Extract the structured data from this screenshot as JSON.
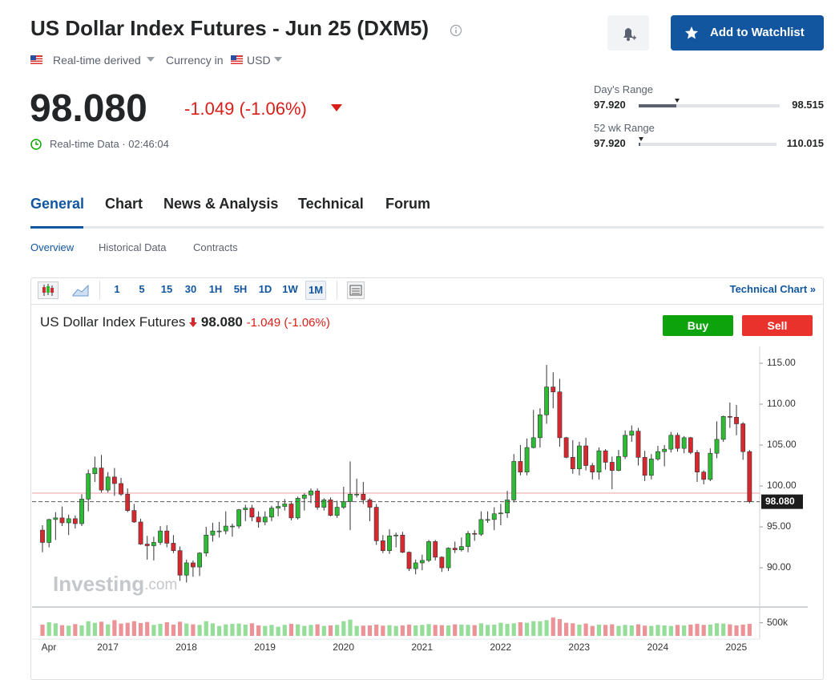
{
  "header": {
    "title": "US Dollar Index Futures - Jun 25 (DXM5)",
    "source": "Real-time derived",
    "currency_label": "Currency in",
    "currency": "USD",
    "add_watchlist": "Add to Watchlist"
  },
  "quote": {
    "price": {
      "value": 98.08,
      "label": "98.080"
    },
    "change": "-1.049",
    "change_pct": "(-1.06%)",
    "status": "Real-time Data · 02:46:04"
  },
  "ranges": [
    {
      "label": "Day's Range",
      "low": {
        "value": 97.92,
        "label": "97.920"
      },
      "high": {
        "value": 98.515,
        "label": "98.515"
      }
    },
    {
      "label": "52 wk Range",
      "low": {
        "value": 97.92,
        "label": "97.920"
      },
      "high": {
        "value": 110.015,
        "label": "110.015"
      }
    }
  ],
  "tabs": [
    "General",
    "Chart",
    "News & Analysis",
    "Technical",
    "Forum"
  ],
  "subtabs": [
    "Overview",
    "Historical Data",
    "Contracts"
  ],
  "toolbar": {
    "intervals": [
      "1",
      "5",
      "15",
      "30",
      "1H",
      "5H",
      "1D",
      "1W",
      "1M"
    ],
    "technical_chart": "Technical Chart »"
  },
  "buy": "Buy",
  "sell": "Sell",
  "chart_data": {
    "type": "candlestick",
    "title": "US Dollar Index Futures",
    "last": {
      "value": 98.08,
      "label": "98.080"
    },
    "watermark": {
      "brand": "Investing",
      "suffix": ".com"
    },
    "up_color": "#2dbb35",
    "down_color": "#d7282f",
    "reference_line": 99.13,
    "categories": [
      "Apr",
      null,
      null,
      null,
      null,
      null,
      null,
      null,
      null,
      "2017",
      null,
      null,
      null,
      null,
      null,
      null,
      null,
      null,
      null,
      null,
      null,
      "2018",
      null,
      null,
      null,
      null,
      null,
      null,
      null,
      null,
      null,
      null,
      null,
      "2019",
      null,
      null,
      null,
      null,
      null,
      null,
      null,
      null,
      null,
      null,
      null,
      "2020",
      null,
      null,
      null,
      null,
      null,
      null,
      null,
      null,
      null,
      null,
      null,
      "2021",
      null,
      null,
      null,
      null,
      null,
      null,
      null,
      null,
      null,
      null,
      null,
      "2022",
      null,
      null,
      null,
      null,
      null,
      null,
      null,
      null,
      null,
      null,
      null,
      "2023",
      null,
      null,
      null,
      null,
      null,
      null,
      null,
      null,
      null,
      null,
      null,
      "2024",
      null,
      null,
      null,
      null,
      null,
      null,
      null,
      null,
      null,
      null,
      null,
      "2025",
      null,
      null,
      null
    ],
    "candles": [
      [
        94.6,
        95.2,
        91.9,
        93.1
      ],
      [
        93.1,
        96.0,
        92.5,
        95.9
      ],
      [
        95.9,
        96.8,
        93.4,
        96.1
      ],
      [
        96.1,
        97.5,
        95.1,
        95.5
      ],
      [
        95.5,
        96.5,
        94.0,
        96.0
      ],
      [
        96.0,
        96.4,
        94.8,
        95.4
      ],
      [
        95.4,
        99.0,
        95.1,
        98.4
      ],
      [
        98.4,
        102.0,
        96.9,
        101.5
      ],
      [
        101.5,
        103.6,
        100.5,
        102.2
      ],
      [
        102.2,
        103.8,
        99.2,
        99.5
      ],
      [
        99.5,
        101.7,
        99.2,
        101.1
      ],
      [
        101.1,
        102.2,
        98.8,
        100.3
      ],
      [
        100.3,
        101.0,
        98.8,
        99.0
      ],
      [
        99.0,
        99.7,
        96.8,
        97.0
      ],
      [
        97.0,
        97.8,
        95.5,
        95.6
      ],
      [
        95.6,
        96.0,
        92.8,
        92.9
      ],
      [
        92.9,
        93.9,
        91.0,
        92.7
      ],
      [
        92.7,
        93.8,
        90.9,
        93.1
      ],
      [
        93.1,
        95.1,
        92.8,
        94.5
      ],
      [
        94.5,
        95.2,
        92.5,
        93.0
      ],
      [
        93.0,
        94.0,
        91.8,
        92.1
      ],
      [
        92.1,
        92.6,
        88.4,
        89.1
      ],
      [
        89.1,
        91.0,
        88.2,
        90.6
      ],
      [
        90.6,
        90.9,
        88.9,
        90.1
      ],
      [
        90.1,
        91.9,
        89.0,
        91.8
      ],
      [
        91.8,
        95.0,
        91.4,
        94.0
      ],
      [
        94.0,
        95.5,
        93.2,
        94.5
      ],
      [
        94.5,
        95.6,
        93.7,
        94.5
      ],
      [
        94.5,
        96.9,
        94.1,
        95.1
      ],
      [
        95.1,
        95.4,
        93.8,
        95.1
      ],
      [
        95.1,
        97.2,
        94.8,
        97.1
      ],
      [
        97.1,
        97.7,
        95.7,
        97.3
      ],
      [
        97.3,
        97.7,
        95.7,
        96.2
      ],
      [
        96.2,
        96.9,
        94.9,
        95.6
      ],
      [
        95.6,
        96.9,
        95.2,
        96.2
      ],
      [
        96.2,
        97.6,
        95.7,
        97.3
      ],
      [
        97.3,
        98.1,
        96.3,
        97.5
      ],
      [
        97.5,
        98.4,
        97.0,
        97.8
      ],
      [
        97.8,
        98.0,
        95.8,
        96.1
      ],
      [
        96.1,
        98.7,
        95.9,
        98.5
      ],
      [
        98.5,
        99.1,
        97.0,
        98.9
      ],
      [
        98.9,
        99.7,
        97.9,
        99.4
      ],
      [
        99.4,
        99.7,
        97.1,
        97.4
      ],
      [
        97.4,
        98.5,
        97.0,
        98.3
      ],
      [
        98.3,
        98.6,
        96.3,
        96.4
      ],
      [
        96.4,
        98.2,
        96.1,
        97.4
      ],
      [
        97.4,
        99.9,
        97.2,
        98.1
      ],
      [
        98.1,
        103.0,
        94.6,
        99.0
      ],
      [
        99.0,
        100.9,
        98.6,
        99.0
      ],
      [
        99.0,
        100.5,
        97.8,
        98.3
      ],
      [
        98.3,
        98.5,
        95.7,
        97.4
      ],
      [
        97.4,
        97.8,
        92.8,
        93.3
      ],
      [
        93.3,
        94.0,
        91.8,
        92.1
      ],
      [
        92.1,
        94.7,
        91.7,
        93.9
      ],
      [
        93.9,
        94.3,
        92.5,
        94.0
      ],
      [
        94.0,
        94.4,
        91.8,
        91.9
      ],
      [
        91.9,
        92.0,
        89.6,
        89.9
      ],
      [
        89.9,
        91.0,
        89.2,
        90.6
      ],
      [
        90.6,
        91.6,
        89.7,
        90.9
      ],
      [
        90.9,
        93.4,
        90.7,
        93.2
      ],
      [
        93.2,
        93.4,
        90.9,
        91.3
      ],
      [
        91.3,
        91.4,
        89.5,
        90.0
      ],
      [
        90.0,
        92.5,
        89.6,
        92.4
      ],
      [
        92.4,
        93.2,
        91.8,
        92.2
      ],
      [
        92.2,
        93.7,
        92.0,
        92.6
      ],
      [
        92.6,
        94.5,
        91.9,
        94.2
      ],
      [
        94.2,
        94.6,
        93.3,
        94.1
      ],
      [
        94.1,
        96.9,
        93.9,
        95.9
      ],
      [
        95.9,
        96.9,
        95.5,
        95.9
      ],
      [
        95.9,
        97.4,
        94.6,
        96.6
      ],
      [
        96.6,
        97.8,
        95.2,
        96.7
      ],
      [
        96.7,
        99.4,
        96.1,
        98.3
      ],
      [
        98.3,
        103.9,
        98.0,
        103.0
      ],
      [
        103.0,
        105.0,
        101.3,
        101.7
      ],
      [
        101.7,
        105.8,
        101.3,
        104.7
      ],
      [
        104.7,
        109.3,
        104.6,
        105.9
      ],
      [
        105.9,
        109.5,
        104.7,
        108.7
      ],
      [
        108.7,
        114.8,
        107.6,
        112.1
      ],
      [
        112.1,
        113.9,
        109.5,
        111.5
      ],
      [
        111.5,
        113.1,
        104.8,
        105.9
      ],
      [
        105.9,
        106.0,
        103.4,
        103.5
      ],
      [
        103.5,
        105.6,
        101.5,
        102.1
      ],
      [
        102.1,
        105.4,
        101.3,
        104.9
      ],
      [
        104.9,
        105.9,
        101.9,
        102.5
      ],
      [
        102.5,
        102.8,
        100.8,
        101.7
      ],
      [
        101.7,
        104.7,
        100.8,
        104.3
      ],
      [
        104.3,
        104.5,
        102.0,
        102.9
      ],
      [
        102.9,
        103.6,
        99.6,
        101.9
      ],
      [
        101.9,
        104.4,
        101.8,
        103.6
      ],
      [
        103.6,
        106.8,
        103.3,
        106.2
      ],
      [
        106.2,
        107.4,
        105.4,
        106.7
      ],
      [
        106.7,
        107.1,
        102.5,
        103.5
      ],
      [
        103.5,
        104.3,
        100.6,
        101.3
      ],
      [
        101.3,
        103.9,
        100.8,
        103.3
      ],
      [
        103.3,
        104.9,
        103.1,
        104.2
      ],
      [
        104.2,
        105.0,
        102.4,
        104.5
      ],
      [
        104.5,
        106.6,
        104.1,
        106.2
      ],
      [
        106.2,
        106.5,
        104.2,
        104.6
      ],
      [
        104.6,
        106.1,
        104.0,
        105.9
      ],
      [
        105.9,
        106.0,
        103.9,
        104.1
      ],
      [
        104.1,
        104.4,
        100.5,
        101.7
      ],
      [
        101.7,
        101.9,
        100.2,
        100.8
      ],
      [
        100.8,
        104.6,
        100.6,
        104.0
      ],
      [
        104.0,
        107.9,
        103.4,
        105.7
      ],
      [
        105.7,
        108.6,
        105.4,
        108.5
      ],
      [
        108.5,
        110.2,
        107.1,
        108.4
      ],
      [
        108.4,
        109.9,
        106.2,
        107.6
      ],
      [
        107.6,
        107.8,
        103.2,
        104.2
      ],
      [
        104.2,
        104.4,
        97.9,
        98.08
      ]
    ],
    "volume": [
      430000,
      520000,
      480000,
      410000,
      390000,
      450000,
      400000,
      560000,
      500000,
      540000,
      440000,
      600000,
      470000,
      500000,
      560000,
      490000,
      530000,
      420000,
      460000,
      520000,
      430000,
      540000,
      470000,
      440000,
      420000,
      560000,
      480000,
      380000,
      440000,
      460000,
      470000,
      430000,
      480000,
      400000,
      380000,
      420000,
      350000,
      420000,
      460000,
      440000,
      380000,
      420000,
      440000,
      380000,
      400000,
      420000,
      560000,
      620000,
      380000,
      390000,
      400000,
      430000,
      390000,
      410000,
      380000,
      400000,
      430000,
      400000,
      420000,
      450000,
      420000,
      410000,
      400000,
      440000,
      430000,
      420000,
      410000,
      480000,
      420000,
      430000,
      500000,
      460000,
      480000,
      520000,
      500000,
      560000,
      560000,
      600000,
      700000,
      640000,
      500000,
      480000,
      430000,
      470000,
      380000,
      430000,
      420000,
      440000,
      380000,
      420000,
      400000,
      440000,
      390000,
      380000,
      420000,
      400000,
      380000,
      420000,
      400000,
      430000,
      460000,
      420000,
      430000,
      480000,
      470000,
      440000,
      400000,
      430000,
      460000
    ],
    "ylim": [
      85.4,
      117.06
    ],
    "yticks": [
      {
        "value": 90,
        "label": "90.00"
      },
      {
        "value": 95,
        "label": "95.00"
      },
      {
        "value": 100,
        "label": "100.00"
      },
      {
        "value": 105,
        "label": "105.00"
      },
      {
        "value": 110,
        "label": "110.00"
      },
      {
        "value": 115,
        "label": "115.00"
      }
    ],
    "volume_lim": [
      0,
      1100000
    ],
    "volume_ticks": [
      {
        "value": 500000,
        "label": "500k"
      }
    ]
  }
}
